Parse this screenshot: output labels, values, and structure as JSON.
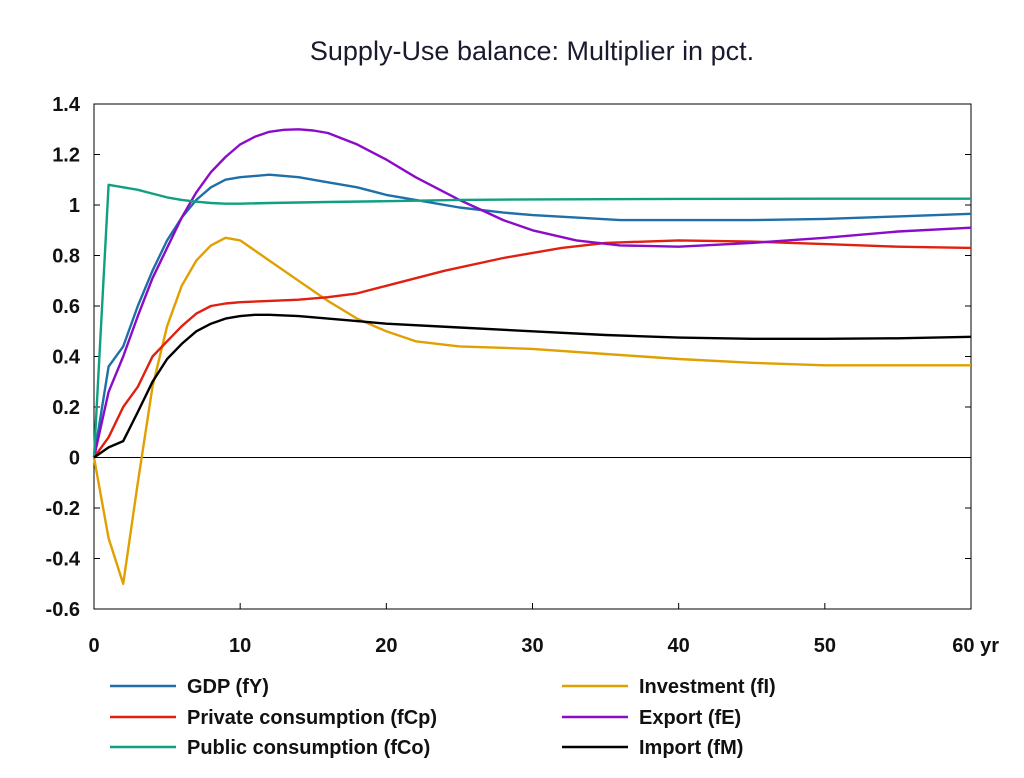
{
  "chart_data": {
    "type": "line",
    "title": "Supply-Use balance: Multiplier in pct.",
    "xlabel": "",
    "ylabel": "",
    "xlim": [
      0,
      60
    ],
    "ylim": [
      -0.6,
      1.4
    ],
    "x_ticks": [
      0,
      10,
      20,
      30,
      40,
      50,
      60
    ],
    "x_tick_labels": [
      "0",
      "10",
      "20",
      "30",
      "40",
      "50",
      "60 yr"
    ],
    "y_ticks": [
      -0.6,
      -0.4,
      -0.2,
      0,
      0.2,
      0.4,
      0.6,
      0.8,
      1,
      1.2,
      1.4
    ],
    "y_tick_labels": [
      "-0.6",
      "-0.4",
      "-0.2",
      "0",
      "0.2",
      "0.4",
      "0.6",
      "0.8",
      "1",
      "1.2",
      "1.4"
    ],
    "grid": false,
    "legend_position": "bottom",
    "series": [
      {
        "name": "GDP (fY)",
        "color": "#1f6fa8",
        "x": [
          0,
          1,
          2,
          3,
          4,
          5,
          6,
          7,
          8,
          9,
          10,
          12,
          14,
          16,
          18,
          20,
          22,
          25,
          28,
          30,
          33,
          36,
          40,
          45,
          50,
          55,
          60
        ],
        "y": [
          0,
          0.36,
          0.44,
          0.6,
          0.74,
          0.86,
          0.95,
          1.02,
          1.07,
          1.1,
          1.11,
          1.12,
          1.11,
          1.09,
          1.07,
          1.04,
          1.02,
          0.99,
          0.97,
          0.96,
          0.95,
          0.94,
          0.94,
          0.94,
          0.945,
          0.955,
          0.965
        ]
      },
      {
        "name": "Investment (fI)",
        "color": "#e0a000",
        "x": [
          0,
          1,
          2,
          3,
          4,
          5,
          6,
          7,
          8,
          9,
          10,
          11,
          12,
          14,
          16,
          18,
          20,
          22,
          25,
          30,
          35,
          40,
          45,
          50,
          55,
          60
        ],
        "y": [
          0,
          -0.32,
          -0.5,
          -0.1,
          0.28,
          0.52,
          0.68,
          0.78,
          0.84,
          0.87,
          0.86,
          0.82,
          0.78,
          0.7,
          0.62,
          0.55,
          0.5,
          0.46,
          0.44,
          0.43,
          0.41,
          0.39,
          0.375,
          0.365,
          0.365,
          0.365
        ]
      },
      {
        "name": "Private consumption (fCp)",
        "color": "#e02010",
        "x": [
          0,
          1,
          2,
          3,
          4,
          5,
          6,
          7,
          8,
          9,
          10,
          12,
          14,
          16,
          18,
          20,
          24,
          28,
          32,
          35,
          40,
          45,
          50,
          55,
          60
        ],
        "y": [
          0,
          0.08,
          0.2,
          0.28,
          0.4,
          0.46,
          0.52,
          0.57,
          0.6,
          0.61,
          0.615,
          0.62,
          0.625,
          0.635,
          0.65,
          0.68,
          0.74,
          0.79,
          0.83,
          0.85,
          0.86,
          0.855,
          0.845,
          0.835,
          0.83
        ]
      },
      {
        "name": "Export (fE)",
        "color": "#8a0cc8",
        "x": [
          0,
          1,
          2,
          3,
          4,
          5,
          6,
          7,
          8,
          9,
          10,
          11,
          12,
          13,
          14,
          15,
          16,
          18,
          20,
          22,
          25,
          28,
          30,
          33,
          36,
          40,
          45,
          50,
          55,
          60
        ],
        "y": [
          0,
          0.26,
          0.4,
          0.56,
          0.71,
          0.83,
          0.95,
          1.05,
          1.13,
          1.19,
          1.24,
          1.27,
          1.29,
          1.298,
          1.3,
          1.295,
          1.285,
          1.24,
          1.18,
          1.11,
          1.02,
          0.94,
          0.9,
          0.86,
          0.84,
          0.835,
          0.85,
          0.87,
          0.895,
          0.91
        ]
      },
      {
        "name": "Public consumption (fCo)",
        "color": "#10a080",
        "x": [
          0,
          1,
          2,
          3,
          4,
          5,
          6,
          7,
          8,
          9,
          10,
          12,
          14,
          16,
          20,
          25,
          30,
          40,
          50,
          60
        ],
        "y": [
          0,
          1.08,
          1.07,
          1.06,
          1.045,
          1.03,
          1.02,
          1.013,
          1.008,
          1.005,
          1.005,
          1.008,
          1.01,
          1.012,
          1.015,
          1.02,
          1.022,
          1.024,
          1.025,
          1.025
        ]
      },
      {
        "name": "Import (fM)",
        "color": "#000000",
        "x": [
          0,
          1,
          2,
          3,
          4,
          5,
          6,
          7,
          8,
          9,
          10,
          11,
          12,
          14,
          16,
          18,
          20,
          25,
          30,
          35,
          40,
          45,
          50,
          55,
          60
        ],
        "y": [
          0,
          0.04,
          0.065,
          0.18,
          0.3,
          0.39,
          0.45,
          0.5,
          0.53,
          0.55,
          0.56,
          0.565,
          0.565,
          0.56,
          0.55,
          0.54,
          0.53,
          0.515,
          0.5,
          0.485,
          0.475,
          0.47,
          0.47,
          0.472,
          0.478
        ]
      }
    ]
  }
}
